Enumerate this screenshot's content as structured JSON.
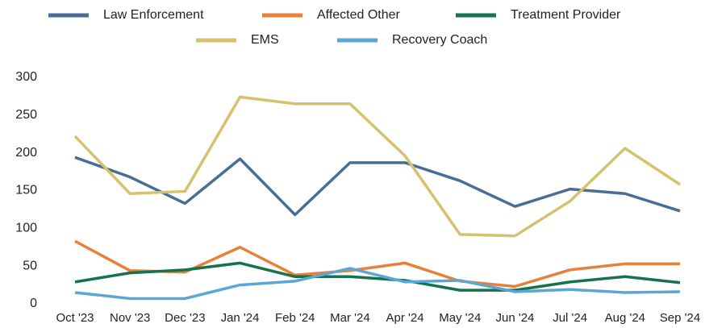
{
  "chart_data": {
    "type": "line",
    "categories": [
      "Oct '23",
      "Nov '23",
      "Dec '23",
      "Jan '24",
      "Feb '24",
      "Mar '24",
      "Apr '24",
      "May '24",
      "Jun '24",
      "Jul '24",
      "Aug '24",
      "Sep '24"
    ],
    "series": [
      {
        "name": "Law Enforcement",
        "color": "#4a6d96",
        "values": [
          194,
          168,
          133,
          192,
          118,
          187,
          187,
          163,
          129,
          152,
          146,
          123
        ]
      },
      {
        "name": "Affected Other",
        "color": "#e8803a",
        "values": [
          83,
          44,
          42,
          75,
          38,
          44,
          54,
          30,
          23,
          45,
          53,
          53
        ]
      },
      {
        "name": "Treatment Provider",
        "color": "#16714d",
        "values": [
          29,
          41,
          45,
          54,
          36,
          36,
          31,
          18,
          18,
          29,
          36,
          28
        ]
      },
      {
        "name": "EMS",
        "color": "#d6c26e",
        "values": [
          222,
          146,
          149,
          274,
          265,
          265,
          196,
          92,
          90,
          136,
          206,
          158
        ]
      },
      {
        "name": "Recovery Coach",
        "color": "#5aa7d6",
        "values": [
          15,
          7,
          7,
          25,
          30,
          47,
          29,
          31,
          16,
          19,
          15,
          16
        ]
      }
    ],
    "ylim": [
      0,
      300
    ],
    "yticks": [
      0,
      50,
      100,
      150,
      200,
      250,
      300
    ],
    "grid": false,
    "legend": "top"
  }
}
